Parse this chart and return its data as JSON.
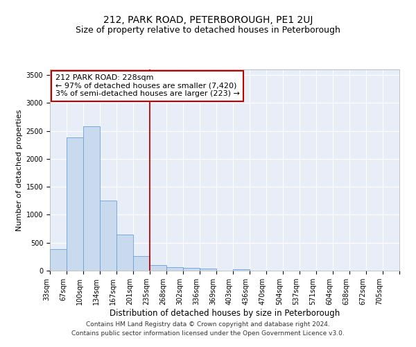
{
  "title1": "212, PARK ROAD, PETERBOROUGH, PE1 2UJ",
  "title2": "Size of property relative to detached houses in Peterborough",
  "xlabel": "Distribution of detached houses by size in Peterborough",
  "ylabel": "Number of detached properties",
  "footer1": "Contains HM Land Registry data © Crown copyright and database right 2024.",
  "footer2": "Contains public sector information licensed under the Open Government Licence v3.0.",
  "bin_labels": [
    "33sqm",
    "67sqm",
    "100sqm",
    "134sqm",
    "167sqm",
    "201sqm",
    "235sqm",
    "268sqm",
    "302sqm",
    "336sqm",
    "369sqm",
    "403sqm",
    "436sqm",
    "470sqm",
    "504sqm",
    "537sqm",
    "571sqm",
    "604sqm",
    "638sqm",
    "672sqm",
    "705sqm"
  ],
  "bar_values": [
    380,
    2380,
    2580,
    1250,
    640,
    260,
    100,
    60,
    55,
    40,
    0,
    30,
    0,
    0,
    0,
    0,
    0,
    0,
    0,
    0,
    0
  ],
  "bar_color": "#c9d9ee",
  "bar_edge_color": "#6a9fd8",
  "vline_x_index": 6,
  "vline_color": "#c00000",
  "annotation_line1": "212 PARK ROAD: 228sqm",
  "annotation_line2": "← 97% of detached houses are smaller (7,420)",
  "annotation_line3": "3% of semi-detached houses are larger (223) →",
  "annotation_box_color": "#ffffff",
  "annotation_border_color": "#c00000",
  "ylim": [
    0,
    3600
  ],
  "yticks": [
    0,
    500,
    1000,
    1500,
    2000,
    2500,
    3000,
    3500
  ],
  "bg_color": "#e8eef8",
  "grid_color": "#ffffff",
  "title1_fontsize": 10,
  "title2_fontsize": 9,
  "ylabel_fontsize": 8,
  "xlabel_fontsize": 8.5,
  "tick_fontsize": 7,
  "footer_fontsize": 6.5,
  "annotation_fontsize": 8
}
